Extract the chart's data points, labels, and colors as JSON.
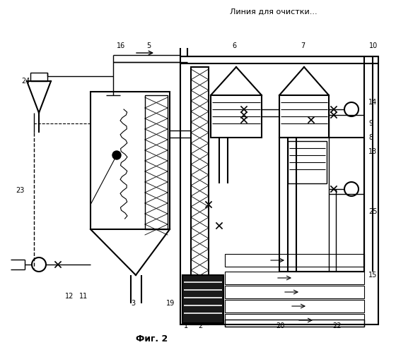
{
  "title": "Линия для очистки...",
  "fig_label": "Фиг. 2",
  "bg_color": "#ffffff",
  "figsize": [
    5.6,
    4.99
  ],
  "dpi": 100
}
